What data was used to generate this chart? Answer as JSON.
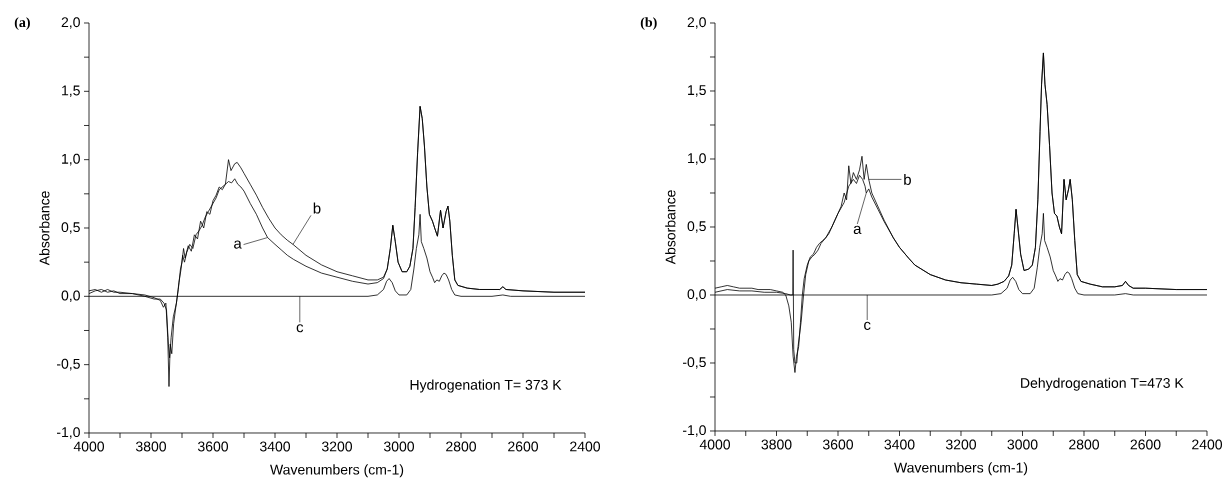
{
  "chart_data": [
    {
      "type": "line",
      "title": "(a)",
      "xlabel": "Wavenumbers (cm-1)",
      "ylabel": "Absorbance",
      "xlim": [
        4000,
        2400
      ],
      "ylim": [
        -1.0,
        2.0
      ],
      "xticks": [
        4000,
        {
          "value": 3900,
          "label": null
        },
        3800,
        {
          "value": 3700,
          "label": null
        },
        3600,
        {
          "value": 3500,
          "label": null
        },
        3400,
        {
          "value": 3300,
          "label": null
        },
        3200,
        {
          "value": 3100,
          "label": null
        },
        3000,
        {
          "value": 2900,
          "label": null
        },
        2800,
        {
          "value": 2700,
          "label": null
        },
        2600,
        {
          "value": 2500,
          "label": null
        },
        2400
      ],
      "yticks": [
        {
          "value": -1.0,
          "label": "-1,0"
        },
        {
          "value": -0.75,
          "label": null
        },
        {
          "value": -0.5,
          "label": "-0,5"
        },
        {
          "value": -0.25,
          "label": null
        },
        {
          "value": 0.0,
          "label": "0,0"
        },
        {
          "value": 0.25,
          "label": null
        },
        {
          "value": 0.5,
          "label": "0,5"
        },
        {
          "value": 0.75,
          "label": null
        },
        {
          "value": 1.0,
          "label": "1,0"
        },
        {
          "value": 1.25,
          "label": null
        },
        {
          "value": 1.5,
          "label": "1,5"
        },
        {
          "value": 1.75,
          "label": null
        },
        {
          "value": 2.0,
          "label": "2,0"
        }
      ],
      "series": [
        {
          "color": "#000000",
          "x": [
            4000,
            3980,
            3960,
            3940,
            3920,
            3900,
            3860,
            3820,
            3790,
            3770,
            3758,
            3750,
            3744,
            3740,
            3735,
            3728,
            3718,
            3710,
            3703,
            3698,
            3692,
            3685,
            3675,
            3665,
            3655,
            3645,
            3635,
            3625,
            3615,
            3600,
            3590,
            3580,
            3570,
            3560,
            3550,
            3540,
            3530,
            3520,
            3510,
            3500,
            3480,
            3460,
            3440,
            3424,
            3400,
            3380,
            3360,
            3340,
            3300,
            3250,
            3200,
            3150,
            3100,
            3070,
            3050,
            3038,
            3028,
            3020,
            3012,
            3003,
            2990,
            2975,
            2965,
            2955,
            2948,
            2940,
            2932,
            2925,
            2918,
            2910,
            2902,
            2892,
            2885,
            2876,
            2866,
            2858,
            2848,
            2842,
            2836,
            2828,
            2820,
            2810,
            2780,
            2740,
            2700,
            2675,
            2665,
            2655,
            2600,
            2500,
            2400
          ],
          "values": [
            0.02,
            0.04,
            0.05,
            0.03,
            0.04,
            0.02,
            0.02,
            0.0,
            -0.02,
            -0.02,
            -0.05,
            -0.1,
            -0.35,
            -0.45,
            -0.3,
            -0.15,
            -0.05,
            0.1,
            0.2,
            0.3,
            0.25,
            0.32,
            0.38,
            0.35,
            0.45,
            0.48,
            0.52,
            0.58,
            0.62,
            0.68,
            0.72,
            0.78,
            0.8,
            0.82,
            0.84,
            0.83,
            0.86,
            0.82,
            0.8,
            0.77,
            0.68,
            0.6,
            0.5,
            0.43,
            0.38,
            0.34,
            0.3,
            0.27,
            0.22,
            0.17,
            0.14,
            0.11,
            0.09,
            0.1,
            0.13,
            0.2,
            0.35,
            0.52,
            0.4,
            0.25,
            0.18,
            0.18,
            0.22,
            0.35,
            0.65,
            1.05,
            1.39,
            1.3,
            1.1,
            0.8,
            0.6,
            0.55,
            0.5,
            0.44,
            0.63,
            0.5,
            0.62,
            0.66,
            0.55,
            0.3,
            0.12,
            0.08,
            0.06,
            0.05,
            0.05,
            0.05,
            0.07,
            0.05,
            0.04,
            0.03,
            0.03
          ]
        },
        {
          "color": "#000000",
          "x": [
            4000,
            3980,
            3960,
            3940,
            3920,
            3900,
            3860,
            3820,
            3790,
            3770,
            3760,
            3752,
            3746,
            3742,
            3738,
            3733,
            3727,
            3720,
            3712,
            3705,
            3700,
            3695,
            3690,
            3680,
            3670,
            3660,
            3650,
            3640,
            3630,
            3620,
            3610,
            3600,
            3590,
            3580,
            3570,
            3560,
            3550,
            3542,
            3530,
            3522,
            3510,
            3500,
            3480,
            3460,
            3440,
            3420,
            3400,
            3380,
            3360,
            3342,
            3300,
            3250,
            3200,
            3150,
            3100,
            3070,
            3050,
            3038,
            3028,
            3020,
            3012,
            3003,
            2990,
            2975,
            2965,
            2955,
            2948,
            2940,
            2932,
            2925,
            2918,
            2910,
            2902,
            2892,
            2885,
            2876,
            2866,
            2858,
            2848,
            2842,
            2836,
            2828,
            2820,
            2810,
            2780,
            2740,
            2700,
            2675,
            2665,
            2655,
            2600,
            2500,
            2400
          ],
          "values": [
            0.04,
            0.05,
            0.03,
            0.05,
            0.03,
            0.03,
            0.02,
            0.01,
            -0.01,
            -0.03,
            -0.08,
            -0.05,
            -0.3,
            -0.66,
            -0.35,
            -0.42,
            -0.2,
            -0.08,
            0.05,
            0.2,
            0.25,
            0.35,
            0.28,
            0.37,
            0.33,
            0.45,
            0.42,
            0.55,
            0.5,
            0.62,
            0.6,
            0.7,
            0.74,
            0.8,
            0.78,
            0.82,
            1.0,
            0.92,
            0.97,
            0.98,
            0.94,
            0.9,
            0.82,
            0.74,
            0.65,
            0.57,
            0.5,
            0.45,
            0.41,
            0.38,
            0.3,
            0.23,
            0.18,
            0.15,
            0.12,
            0.12,
            0.14,
            0.2,
            0.35,
            0.52,
            0.4,
            0.25,
            0.18,
            0.18,
            0.22,
            0.35,
            0.65,
            1.05,
            1.39,
            1.3,
            1.1,
            0.8,
            0.6,
            0.55,
            0.5,
            0.44,
            0.63,
            0.5,
            0.62,
            0.66,
            0.55,
            0.3,
            0.12,
            0.08,
            0.06,
            0.05,
            0.05,
            0.05,
            0.07,
            0.05,
            0.04,
            0.03,
            0.03
          ]
        },
        {
          "color": "#000000",
          "x": [
            4000,
            3100,
            3070,
            3050,
            3040,
            3032,
            3022,
            3012,
            3000,
            2975,
            2962,
            2952,
            2944,
            2936,
            2932,
            2928,
            2920,
            2910,
            2900,
            2892,
            2885,
            2878,
            2870,
            2862,
            2855,
            2848,
            2840,
            2830,
            2820,
            2800,
            2700,
            2665,
            2640,
            2400
          ],
          "values": [
            0.0,
            0.0,
            0.01,
            0.05,
            0.11,
            0.13,
            0.1,
            0.04,
            0.01,
            0.01,
            0.05,
            0.2,
            0.35,
            0.45,
            0.6,
            0.4,
            0.35,
            0.28,
            0.18,
            0.14,
            0.1,
            0.12,
            0.11,
            0.15,
            0.17,
            0.16,
            0.12,
            0.05,
            0.01,
            0.0,
            0.0,
            0.01,
            0.0,
            0.0
          ]
        }
      ],
      "annotations": [
        {
          "text": "a",
          "x": 3424,
          "y": 0.43
        },
        {
          "text": "b",
          "x": 3342,
          "y": 0.38
        },
        {
          "text": "c",
          "x": 3320,
          "y": 0.0
        },
        "Hydrogenation T= 373 K"
      ]
    },
    {
      "type": "line",
      "title": "(b)",
      "xlabel": "Wavenumbers (cm-1)",
      "ylabel": "Absorbance",
      "xlim": [
        4000,
        2400
      ],
      "ylim": [
        -1.0,
        2.0
      ],
      "xticks": [
        4000,
        {
          "value": 3900,
          "label": null
        },
        3800,
        {
          "value": 3700,
          "label": null
        },
        3600,
        {
          "value": 3500,
          "label": null
        },
        3400,
        {
          "value": 3300,
          "label": null
        },
        3200,
        {
          "value": 3100,
          "label": null
        },
        3000,
        {
          "value": 2900,
          "label": null
        },
        2800,
        {
          "value": 2700,
          "label": null
        },
        2600,
        {
          "value": 2500,
          "label": null
        },
        2400
      ],
      "yticks": [
        {
          "value": -1.0,
          "label": "-1,0"
        },
        {
          "value": -0.75,
          "label": null
        },
        {
          "value": -0.5,
          "label": "-0,5"
        },
        {
          "value": -0.25,
          "label": null
        },
        {
          "value": 0.0,
          "label": "0,0"
        },
        {
          "value": 0.25,
          "label": null
        },
        {
          "value": 0.5,
          "label": "0,5"
        },
        {
          "value": 0.75,
          "label": null
        },
        {
          "value": 1.0,
          "label": "1,0"
        },
        {
          "value": 1.25,
          "label": null
        },
        {
          "value": 1.5,
          "label": "1,5"
        },
        {
          "value": 1.75,
          "label": null
        },
        {
          "value": 2.0,
          "label": "2,0"
        }
      ],
      "series": [
        {
          "color": "#000000",
          "x": [
            4000,
            3960,
            3920,
            3880,
            3840,
            3800,
            3770,
            3755,
            3747,
            3746,
            3744,
            3740,
            3734,
            3730,
            3720,
            3712,
            3705,
            3695,
            3685,
            3675,
            3665,
            3655,
            3640,
            3620,
            3600,
            3580,
            3565,
            3550,
            3540,
            3530,
            3520,
            3512,
            3508,
            3500,
            3490,
            3470,
            3450,
            3420,
            3400,
            3370,
            3350,
            3300,
            3250,
            3200,
            3150,
            3100,
            3080,
            3060,
            3045,
            3035,
            3027,
            3021,
            3015,
            3006,
            2995,
            2980,
            2968,
            2958,
            2950,
            2943,
            2938,
            2932,
            2927,
            2920,
            2912,
            2904,
            2896,
            2888,
            2880,
            2873,
            2865,
            2858,
            2850,
            2845,
            2838,
            2830,
            2822,
            2810,
            2780,
            2740,
            2700,
            2675,
            2665,
            2655,
            2640,
            2600,
            2500,
            2400
          ],
          "values": [
            0.02,
            0.04,
            0.03,
            0.03,
            0.02,
            0.02,
            0.01,
            0.0,
            0.0,
            0.33,
            -0.4,
            -0.5,
            -0.5,
            -0.38,
            -0.2,
            0.0,
            0.15,
            0.25,
            0.28,
            0.3,
            0.33,
            0.38,
            0.42,
            0.5,
            0.6,
            0.68,
            0.8,
            0.85,
            0.82,
            0.88,
            0.85,
            0.8,
            0.75,
            0.78,
            0.72,
            0.63,
            0.54,
            0.42,
            0.35,
            0.27,
            0.22,
            0.15,
            0.11,
            0.09,
            0.08,
            0.07,
            0.08,
            0.1,
            0.14,
            0.22,
            0.45,
            0.63,
            0.5,
            0.3,
            0.18,
            0.19,
            0.22,
            0.35,
            0.7,
            1.2,
            1.55,
            1.78,
            1.55,
            1.4,
            1.1,
            0.75,
            0.6,
            0.58,
            0.5,
            0.45,
            0.85,
            0.7,
            0.78,
            0.85,
            0.7,
            0.4,
            0.15,
            0.1,
            0.08,
            0.06,
            0.06,
            0.07,
            0.1,
            0.07,
            0.05,
            0.05,
            0.04,
            0.04
          ]
        },
        {
          "color": "#000000",
          "x": [
            4000,
            3980,
            3960,
            3940,
            3920,
            3900,
            3880,
            3860,
            3840,
            3820,
            3800,
            3780,
            3770,
            3760,
            3752,
            3746,
            3740,
            3735,
            3728,
            3722,
            3716,
            3710,
            3700,
            3690,
            3680,
            3670,
            3660,
            3650,
            3640,
            3630,
            3620,
            3610,
            3600,
            3590,
            3580,
            3572,
            3565,
            3558,
            3550,
            3540,
            3530,
            3522,
            3515,
            3508,
            3500,
            3490,
            3470,
            3450,
            3420,
            3400,
            3370,
            3350,
            3300,
            3250,
            3200,
            3150,
            3100,
            3080,
            3060,
            3045,
            3035,
            3027,
            3021,
            3015,
            3006,
            2995,
            2980,
            2968,
            2958,
            2950,
            2943,
            2938,
            2932,
            2927,
            2920,
            2912,
            2904,
            2896,
            2888,
            2880,
            2873,
            2865,
            2858,
            2850,
            2845,
            2838,
            2830,
            2822,
            2810,
            2780,
            2740,
            2700,
            2675,
            2665,
            2655,
            2640,
            2600,
            2500,
            2400
          ],
          "values": [
            0.05,
            0.06,
            0.07,
            0.06,
            0.05,
            0.05,
            0.05,
            0.04,
            0.04,
            0.04,
            0.03,
            0.02,
            0.0,
            -0.08,
            -0.2,
            -0.45,
            -0.57,
            -0.45,
            -0.38,
            -0.2,
            0.0,
            0.12,
            0.22,
            0.28,
            0.3,
            0.35,
            0.38,
            0.4,
            0.42,
            0.45,
            0.5,
            0.55,
            0.6,
            0.65,
            0.75,
            0.7,
            0.95,
            0.82,
            0.9,
            0.85,
            0.92,
            1.02,
            0.85,
            0.96,
            0.85,
            0.75,
            0.65,
            0.55,
            0.42,
            0.35,
            0.27,
            0.22,
            0.15,
            0.11,
            0.09,
            0.08,
            0.07,
            0.08,
            0.1,
            0.14,
            0.22,
            0.45,
            0.63,
            0.5,
            0.3,
            0.18,
            0.19,
            0.22,
            0.35,
            0.7,
            1.2,
            1.55,
            1.78,
            1.55,
            1.4,
            1.1,
            0.75,
            0.6,
            0.58,
            0.5,
            0.45,
            0.85,
            0.7,
            0.78,
            0.85,
            0.7,
            0.4,
            0.15,
            0.1,
            0.08,
            0.06,
            0.06,
            0.07,
            0.1,
            0.07,
            0.05,
            0.05,
            0.04,
            0.04
          ]
        },
        {
          "color": "#000000",
          "x": [
            4000,
            3100,
            3070,
            3050,
            3040,
            3032,
            3022,
            3012,
            3000,
            2975,
            2962,
            2952,
            2944,
            2936,
            2932,
            2928,
            2920,
            2910,
            2900,
            2892,
            2885,
            2878,
            2870,
            2862,
            2855,
            2848,
            2840,
            2830,
            2820,
            2800,
            2700,
            2665,
            2640,
            2400
          ],
          "values": [
            0.0,
            0.0,
            0.01,
            0.05,
            0.11,
            0.13,
            0.1,
            0.04,
            0.01,
            0.01,
            0.05,
            0.2,
            0.35,
            0.45,
            0.6,
            0.4,
            0.35,
            0.28,
            0.18,
            0.14,
            0.1,
            0.12,
            0.11,
            0.15,
            0.17,
            0.16,
            0.12,
            0.05,
            0.01,
            0.0,
            0.0,
            0.01,
            0.0,
            0.0
          ]
        }
      ],
      "annotations": [
        {
          "text": "a",
          "x": 3508,
          "y": 0.75
        },
        {
          "text": "b",
          "x": 3501,
          "y": 0.85
        },
        {
          "text": "c",
          "x": 3505,
          "y": 0.0
        },
        "Dehydrogenation T=473 K"
      ]
    }
  ]
}
